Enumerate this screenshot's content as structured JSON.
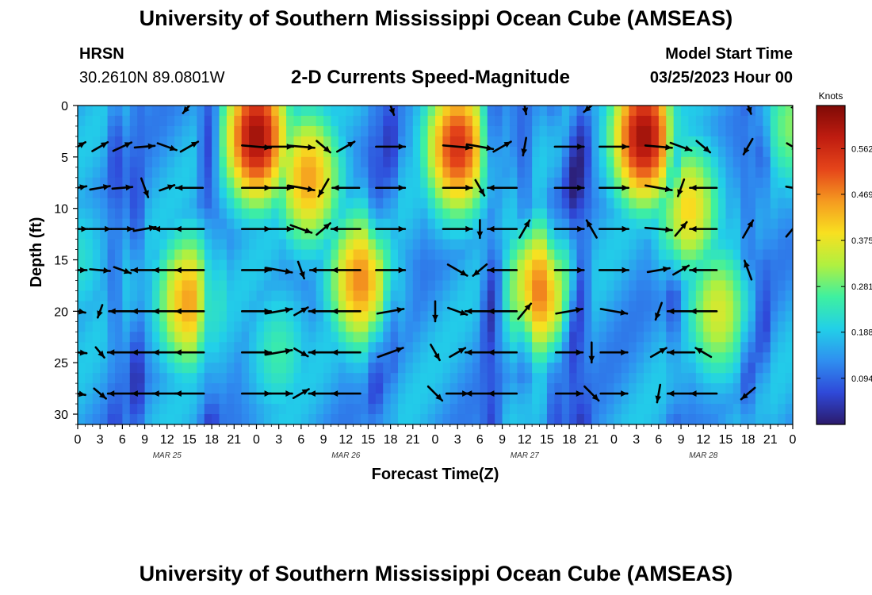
{
  "header": {
    "title": "University of Southern Mississippi Ocean Cube (AMSEAS)",
    "station": "HRSN",
    "coords": "30.2610N  89.0801W",
    "subtitle": "2-D Currents Speed-Magnitude",
    "model_start_label": "Model Start Time",
    "model_start_value": "03/25/2023 Hour 00"
  },
  "footer": {
    "title": "University of Southern Mississippi Ocean Cube (AMSEAS)"
  },
  "chart_data": {
    "type": "heatmap",
    "title": "2-D Currents Speed-Magnitude",
    "xlabel": "Forecast Time(Z)",
    "ylabel": "Depth (ft)",
    "x_tick_labels": [
      "0",
      "3",
      "6",
      "9",
      "12",
      "15",
      "18",
      "21",
      "0",
      "3",
      "6",
      "9",
      "12",
      "15",
      "18",
      "21",
      "0",
      "3",
      "6",
      "9",
      "12",
      "15",
      "18",
      "21",
      "0",
      "3",
      "6",
      "9",
      "12",
      "15",
      "18",
      "21",
      "0"
    ],
    "x_range_hours": [
      0,
      96
    ],
    "date_labels": [
      {
        "label": "MAR 25",
        "hour": 12
      },
      {
        "label": "MAR 26",
        "hour": 36
      },
      {
        "label": "MAR 27",
        "hour": 60
      },
      {
        "label": "MAR 28",
        "hour": 84
      }
    ],
    "y_ticks": [
      0,
      5,
      10,
      15,
      20,
      25,
      30
    ],
    "y_range_ft": [
      0,
      31
    ],
    "vector_depths_ft": [
      4,
      8,
      12,
      16,
      20,
      24,
      28
    ],
    "colorbar": {
      "title": "Knots",
      "ticks": [
        0.094,
        0.188,
        0.281,
        0.375,
        0.469,
        0.562
      ],
      "tick_labels": [
        "0.094",
        "0.188",
        "0.281",
        "0.375",
        "0.469",
        "0.562"
      ],
      "range": [
        0,
        0.65
      ],
      "colors": [
        "#2b1a6b",
        "#2f49d9",
        "#2f8ff0",
        "#22d0e8",
        "#3ef0a0",
        "#b0f040",
        "#f8e020",
        "#f59a20",
        "#e5451a",
        "#bf1c10",
        "#7e0a06"
      ]
    },
    "speed_blobs": [
      {
        "hour": 24,
        "depth_ft": 3,
        "speed": 0.62
      },
      {
        "hour": 31,
        "depth_ft": 7,
        "speed": 0.45
      },
      {
        "hour": 15,
        "depth_ft": 19,
        "speed": 0.45
      },
      {
        "hour": 38,
        "depth_ft": 17,
        "speed": 0.47
      },
      {
        "hour": 51,
        "depth_ft": 4,
        "speed": 0.55
      },
      {
        "hour": 62,
        "depth_ft": 18,
        "speed": 0.48
      },
      {
        "hour": 76,
        "depth_ft": 3,
        "speed": 0.62
      },
      {
        "hour": 82,
        "depth_ft": 10,
        "speed": 0.4
      },
      {
        "hour": 86,
        "depth_ft": 20,
        "speed": 0.36
      },
      {
        "hour": 96,
        "depth_ft": 2,
        "speed": 0.3
      },
      {
        "hour": 0,
        "depth_ft": 15,
        "speed": 0.22
      },
      {
        "hour": 27,
        "depth_ft": 24,
        "speed": 0.25
      }
    ],
    "low_speed_hours": [
      5,
      8,
      17,
      18,
      40,
      42,
      55,
      56,
      60,
      64,
      66,
      67,
      68,
      80,
      90,
      92
    ],
    "vectors": [
      {
        "h": 0,
        "d": 4,
        "dir": 60,
        "len": 0.8
      },
      {
        "h": 0,
        "d": 8,
        "dir": 80,
        "len": 0.8
      },
      {
        "h": 0,
        "d": 12,
        "dir": 90,
        "len": 0.9
      },
      {
        "h": 0,
        "d": 16,
        "dir": 90,
        "len": 0.8
      },
      {
        "h": 0,
        "d": 20,
        "dir": 100,
        "len": 0.7
      },
      {
        "h": 0,
        "d": 24,
        "dir": 95,
        "len": 0.8
      },
      {
        "h": 0,
        "d": 28,
        "dir": 100,
        "len": 0.7
      },
      {
        "h": 3,
        "d": 4,
        "dir": 60,
        "len": 0.8
      },
      {
        "h": 3,
        "d": 8,
        "dir": 80,
        "len": 0.9
      },
      {
        "h": 3,
        "d": 12,
        "dir": 90,
        "len": 1.0
      },
      {
        "h": 3,
        "d": 16,
        "dir": 95,
        "len": 0.9
      },
      {
        "h": 3,
        "d": 20,
        "dir": 200,
        "len": 0.6
      },
      {
        "h": 3,
        "d": 24,
        "dir": 140,
        "len": 0.6
      },
      {
        "h": 3,
        "d": 28,
        "dir": 130,
        "len": 0.7
      },
      {
        "h": 6,
        "d": 4,
        "dir": 65,
        "len": 0.9
      },
      {
        "h": 6,
        "d": 8,
        "dir": 85,
        "len": 0.9
      },
      {
        "h": 6,
        "d": 12,
        "dir": 90,
        "len": 1.0
      },
      {
        "h": 6,
        "d": 16,
        "dir": 110,
        "len": 0.8
      },
      {
        "h": 6,
        "d": 20,
        "dir": 270,
        "len": 1.2
      },
      {
        "h": 6,
        "d": 24,
        "dir": 270,
        "len": 1.3
      },
      {
        "h": 6,
        "d": 28,
        "dir": 270,
        "len": 1.3
      },
      {
        "h": 9,
        "d": 4,
        "dir": 85,
        "len": 0.9
      },
      {
        "h": 9,
        "d": 8,
        "dir": 160,
        "len": 0.9
      },
      {
        "h": 9,
        "d": 12,
        "dir": 80,
        "len": 1.0
      },
      {
        "h": 9,
        "d": 16,
        "dir": 270,
        "len": 1.2
      },
      {
        "h": 9,
        "d": 20,
        "dir": 270,
        "len": 1.2
      },
      {
        "h": 9,
        "d": 24,
        "dir": 270,
        "len": 1.2
      },
      {
        "h": 9,
        "d": 28,
        "dir": 270,
        "len": 1.2
      },
      {
        "h": 12,
        "d": 4,
        "dir": 110,
        "len": 0.9
      },
      {
        "h": 12,
        "d": 8,
        "dir": 70,
        "len": 0.7
      },
      {
        "h": 12,
        "d": 12,
        "dir": 270,
        "len": 1.2
      },
      {
        "h": 12,
        "d": 16,
        "dir": 270,
        "len": 1.3
      },
      {
        "h": 12,
        "d": 20,
        "dir": 270,
        "len": 1.3
      },
      {
        "h": 12,
        "d": 24,
        "dir": 270,
        "len": 1.3
      },
      {
        "h": 12,
        "d": 28,
        "dir": 270,
        "len": 1.3
      },
      {
        "h": 15,
        "d": 0,
        "dir": 220,
        "len": 0.9
      },
      {
        "h": 15,
        "d": 4,
        "dir": 60,
        "len": 0.9
      },
      {
        "h": 15,
        "d": 8,
        "dir": 270,
        "len": 1.2
      },
      {
        "h": 15,
        "d": 12,
        "dir": 270,
        "len": 1.3
      },
      {
        "h": 15,
        "d": 16,
        "dir": 270,
        "len": 1.3
      },
      {
        "h": 15,
        "d": 20,
        "dir": 270,
        "len": 1.3
      },
      {
        "h": 15,
        "d": 24,
        "dir": 270,
        "len": 1.3
      },
      {
        "h": 15,
        "d": 28,
        "dir": 270,
        "len": 1.3
      },
      {
        "h": 24,
        "d": 4,
        "dir": 95,
        "len": 1.3
      },
      {
        "h": 24,
        "d": 8,
        "dir": 90,
        "len": 1.3
      },
      {
        "h": 24,
        "d": 12,
        "dir": 90,
        "len": 1.3
      },
      {
        "h": 24,
        "d": 16,
        "dir": 90,
        "len": 1.3
      },
      {
        "h": 24,
        "d": 20,
        "dir": 90,
        "len": 1.3
      },
      {
        "h": 24,
        "d": 24,
        "dir": 90,
        "len": 1.3
      },
      {
        "h": 24,
        "d": 28,
        "dir": 90,
        "len": 1.3
      },
      {
        "h": 27,
        "d": 4,
        "dir": 90,
        "len": 1.3
      },
      {
        "h": 27,
        "d": 8,
        "dir": 90,
        "len": 1.3
      },
      {
        "h": 27,
        "d": 12,
        "dir": 90,
        "len": 1.3
      },
      {
        "h": 27,
        "d": 16,
        "dir": 100,
        "len": 1.2
      },
      {
        "h": 27,
        "d": 20,
        "dir": 80,
        "len": 1.2
      },
      {
        "h": 27,
        "d": 24,
        "dir": 80,
        "len": 1.2
      },
      {
        "h": 27,
        "d": 28,
        "dir": 90,
        "len": 1.2
      },
      {
        "h": 30,
        "d": 4,
        "dir": 95,
        "len": 1.2
      },
      {
        "h": 30,
        "d": 8,
        "dir": 100,
        "len": 1.2
      },
      {
        "h": 30,
        "d": 12,
        "dir": 110,
        "len": 1.0
      },
      {
        "h": 30,
        "d": 16,
        "dir": 160,
        "len": 0.8
      },
      {
        "h": 30,
        "d": 20,
        "dir": 60,
        "len": 0.7
      },
      {
        "h": 30,
        "d": 24,
        "dir": 120,
        "len": 0.7
      },
      {
        "h": 30,
        "d": 28,
        "dir": 60,
        "len": 0.8
      },
      {
        "h": 33,
        "d": 4,
        "dir": 130,
        "len": 0.8
      },
      {
        "h": 33,
        "d": 8,
        "dir": 210,
        "len": 0.9
      },
      {
        "h": 33,
        "d": 12,
        "dir": 50,
        "len": 0.8
      },
      {
        "h": 33,
        "d": 16,
        "dir": 270,
        "len": 1.2
      },
      {
        "h": 33,
        "d": 20,
        "dir": 270,
        "len": 1.3
      },
      {
        "h": 33,
        "d": 24,
        "dir": 270,
        "len": 1.3
      },
      {
        "h": 33,
        "d": 28,
        "dir": 270,
        "len": 1.3
      },
      {
        "h": 36,
        "d": 4,
        "dir": 60,
        "len": 0.9
      },
      {
        "h": 36,
        "d": 8,
        "dir": 270,
        "len": 1.2
      },
      {
        "h": 36,
        "d": 12,
        "dir": 270,
        "len": 1.3
      },
      {
        "h": 36,
        "d": 16,
        "dir": 270,
        "len": 1.3
      },
      {
        "h": 36,
        "d": 20,
        "dir": 270,
        "len": 1.3
      },
      {
        "h": 36,
        "d": 24,
        "dir": 270,
        "len": 1.3
      },
      {
        "h": 36,
        "d": 28,
        "dir": 270,
        "len": 1.3
      },
      {
        "h": 42,
        "d": 0,
        "dir": 160,
        "len": 0.9
      },
      {
        "h": 42,
        "d": 4,
        "dir": 90,
        "len": 1.3
      },
      {
        "h": 42,
        "d": 8,
        "dir": 90,
        "len": 1.3
      },
      {
        "h": 42,
        "d": 12,
        "dir": 90,
        "len": 1.3
      },
      {
        "h": 42,
        "d": 16,
        "dir": 90,
        "len": 1.3
      },
      {
        "h": 42,
        "d": 20,
        "dir": 80,
        "len": 1.2
      },
      {
        "h": 42,
        "d": 24,
        "dir": 70,
        "len": 1.2
      },
      {
        "h": 51,
        "d": 4,
        "dir": 95,
        "len": 1.3
      },
      {
        "h": 51,
        "d": 8,
        "dir": 90,
        "len": 1.3
      },
      {
        "h": 51,
        "d": 12,
        "dir": 90,
        "len": 1.3
      },
      {
        "h": 51,
        "d": 16,
        "dir": 120,
        "len": 1.0
      },
      {
        "h": 51,
        "d": 20,
        "dir": 110,
        "len": 0.9
      },
      {
        "h": 51,
        "d": 24,
        "dir": 60,
        "len": 0.8
      },
      {
        "h": 51,
        "d": 28,
        "dir": 90,
        "len": 1.0
      },
      {
        "h": 54,
        "d": 4,
        "dir": 100,
        "len": 1.2
      },
      {
        "h": 54,
        "d": 8,
        "dir": 150,
        "len": 0.8
      },
      {
        "h": 54,
        "d": 12,
        "dir": 180,
        "len": 0.8
      },
      {
        "h": 54,
        "d": 16,
        "dir": 230,
        "len": 0.8
      },
      {
        "h": 54,
        "d": 20,
        "dir": 270,
        "len": 1.3
      },
      {
        "h": 54,
        "d": 24,
        "dir": 270,
        "len": 1.3
      },
      {
        "h": 54,
        "d": 28,
        "dir": 270,
        "len": 1.3
      },
      {
        "h": 57,
        "d": 4,
        "dir": 60,
        "len": 0.9
      },
      {
        "h": 57,
        "d": 8,
        "dir": 270,
        "len": 1.3
      },
      {
        "h": 57,
        "d": 12,
        "dir": 270,
        "len": 1.3
      },
      {
        "h": 57,
        "d": 16,
        "dir": 270,
        "len": 1.3
      },
      {
        "h": 57,
        "d": 20,
        "dir": 270,
        "len": 1.3
      },
      {
        "h": 57,
        "d": 24,
        "dir": 270,
        "len": 1.3
      },
      {
        "h": 57,
        "d": 28,
        "dir": 270,
        "len": 1.3
      },
      {
        "h": 48,
        "d": 20,
        "dir": 180,
        "len": 0.9
      },
      {
        "h": 48,
        "d": 24,
        "dir": 150,
        "len": 0.8
      },
      {
        "h": 48,
        "d": 28,
        "dir": 135,
        "len": 0.9
      },
      {
        "h": 60,
        "d": 0,
        "dir": 170,
        "len": 0.8
      },
      {
        "h": 60,
        "d": 4,
        "dir": 190,
        "len": 0.8
      },
      {
        "h": 60,
        "d": 12,
        "dir": 30,
        "len": 0.9
      },
      {
        "h": 60,
        "d": 20,
        "dir": 40,
        "len": 0.9
      },
      {
        "h": 66,
        "d": 4,
        "dir": 90,
        "len": 1.3
      },
      {
        "h": 66,
        "d": 8,
        "dir": 90,
        "len": 1.3
      },
      {
        "h": 66,
        "d": 12,
        "dir": 90,
        "len": 1.3
      },
      {
        "h": 66,
        "d": 16,
        "dir": 90,
        "len": 1.3
      },
      {
        "h": 66,
        "d": 20,
        "dir": 80,
        "len": 1.2
      },
      {
        "h": 66,
        "d": 24,
        "dir": 90,
        "len": 1.2
      },
      {
        "h": 66,
        "d": 28,
        "dir": 90,
        "len": 1.2
      },
      {
        "h": 69,
        "d": 0,
        "dir": 230,
        "len": 0.9
      },
      {
        "h": 69,
        "d": 12,
        "dir": 330,
        "len": 0.9
      },
      {
        "h": 69,
        "d": 24,
        "dir": 180,
        "len": 0.9
      },
      {
        "h": 69,
        "d": 28,
        "dir": 135,
        "len": 0.9
      },
      {
        "h": 72,
        "d": 4,
        "dir": 90,
        "len": 1.3
      },
      {
        "h": 72,
        "d": 8,
        "dir": 90,
        "len": 1.3
      },
      {
        "h": 72,
        "d": 12,
        "dir": 90,
        "len": 1.3
      },
      {
        "h": 72,
        "d": 16,
        "dir": 90,
        "len": 1.3
      },
      {
        "h": 72,
        "d": 20,
        "dir": 100,
        "len": 1.2
      },
      {
        "h": 72,
        "d": 24,
        "dir": 90,
        "len": 1.2
      },
      {
        "h": 72,
        "d": 28,
        "dir": 90,
        "len": 1.2
      },
      {
        "h": 78,
        "d": 4,
        "dir": 95,
        "len": 1.2
      },
      {
        "h": 78,
        "d": 8,
        "dir": 100,
        "len": 1.2
      },
      {
        "h": 78,
        "d": 12,
        "dir": 95,
        "len": 1.2
      },
      {
        "h": 78,
        "d": 16,
        "dir": 80,
        "len": 1.0
      },
      {
        "h": 78,
        "d": 20,
        "dir": 200,
        "len": 0.8
      },
      {
        "h": 78,
        "d": 24,
        "dir": 60,
        "len": 0.8
      },
      {
        "h": 78,
        "d": 28,
        "dir": 190,
        "len": 0.8
      },
      {
        "h": 81,
        "d": 4,
        "dir": 110,
        "len": 1.0
      },
      {
        "h": 81,
        "d": 8,
        "dir": 200,
        "len": 0.8
      },
      {
        "h": 81,
        "d": 12,
        "dir": 40,
        "len": 0.8
      },
      {
        "h": 81,
        "d": 16,
        "dir": 60,
        "len": 0.8
      },
      {
        "h": 81,
        "d": 20,
        "dir": 270,
        "len": 1.2
      },
      {
        "h": 81,
        "d": 24,
        "dir": 270,
        "len": 1.2
      },
      {
        "h": 81,
        "d": 28,
        "dir": 270,
        "len": 1.2
      },
      {
        "h": 84,
        "d": 4,
        "dir": 130,
        "len": 0.8
      },
      {
        "h": 84,
        "d": 8,
        "dir": 270,
        "len": 1.2
      },
      {
        "h": 84,
        "d": 12,
        "dir": 270,
        "len": 1.2
      },
      {
        "h": 84,
        "d": 16,
        "dir": 270,
        "len": 1.2
      },
      {
        "h": 84,
        "d": 20,
        "dir": 270,
        "len": 1.2
      },
      {
        "h": 84,
        "d": 24,
        "dir": 300,
        "len": 0.8
      },
      {
        "h": 84,
        "d": 28,
        "dir": 270,
        "len": 1.2
      },
      {
        "h": 90,
        "d": 0,
        "dir": 160,
        "len": 0.8
      },
      {
        "h": 90,
        "d": 4,
        "dir": 210,
        "len": 0.8
      },
      {
        "h": 90,
        "d": 12,
        "dir": 30,
        "len": 0.9
      },
      {
        "h": 90,
        "d": 16,
        "dir": 340,
        "len": 0.9
      },
      {
        "h": 90,
        "d": 28,
        "dir": 230,
        "len": 0.8
      },
      {
        "h": 96,
        "d": 0,
        "dir": 140,
        "len": 0.6
      },
      {
        "h": 96,
        "d": 4,
        "dir": 120,
        "len": 0.6
      },
      {
        "h": 96,
        "d": 8,
        "dir": 100,
        "len": 0.6
      },
      {
        "h": 96,
        "d": 12,
        "dir": 40,
        "len": 0.9
      }
    ]
  }
}
